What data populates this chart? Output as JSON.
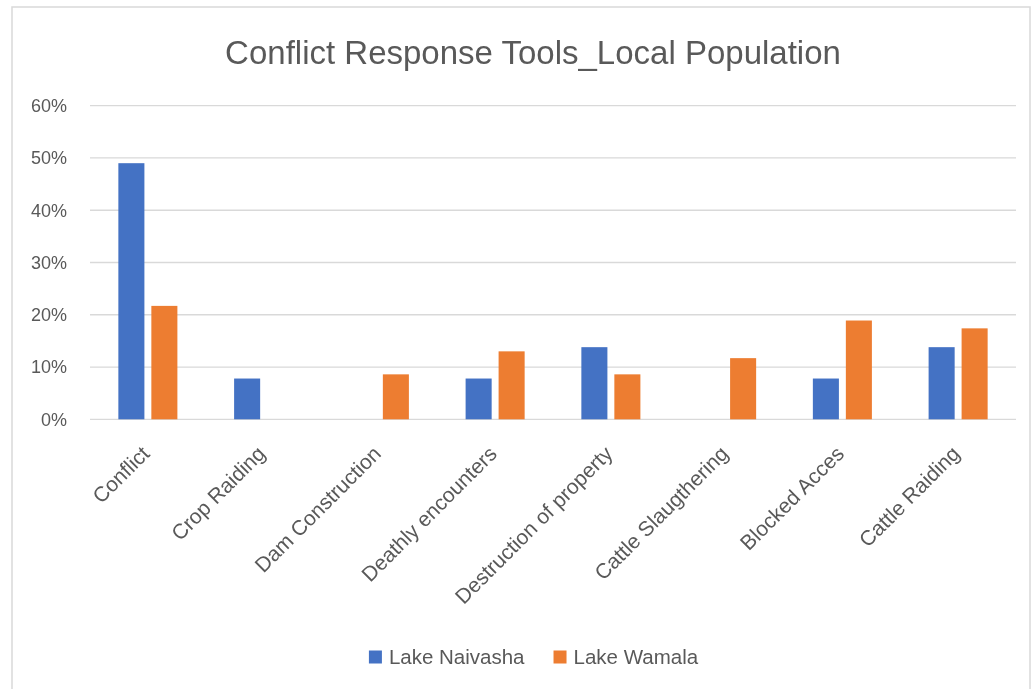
{
  "chart_data": {
    "type": "bar",
    "title": "Conflict Response Tools_Local Population",
    "categories": [
      "Conflict",
      "Crop Raiding",
      "Dam Construction",
      "Deathly encounters",
      "Destruction of property",
      "Cattle Slaugthering",
      "Blocked Acces",
      "Cattle Raiding"
    ],
    "series": [
      {
        "name": "Lake Naivasha",
        "color": "#4472c4",
        "values": [
          49,
          7.8,
          0,
          7.8,
          13.8,
          0,
          7.8,
          13.8
        ]
      },
      {
        "name": "Lake Wamala",
        "color": "#ed7d31",
        "values": [
          21.7,
          0,
          8.6,
          13,
          8.6,
          11.7,
          18.9,
          17.4
        ]
      }
    ],
    "ylim": [
      0,
      60
    ],
    "yticks": [
      {
        "value": 0,
        "label": "0%"
      },
      {
        "value": 10,
        "label": "10%"
      },
      {
        "value": 20,
        "label": "20%"
      },
      {
        "value": 30,
        "label": "30%"
      },
      {
        "value": 40,
        "label": "40%"
      },
      {
        "value": 50,
        "label": "50%"
      },
      {
        "value": 60,
        "label": "60%"
      }
    ],
    "grid": "y",
    "legend": "bottom"
  }
}
